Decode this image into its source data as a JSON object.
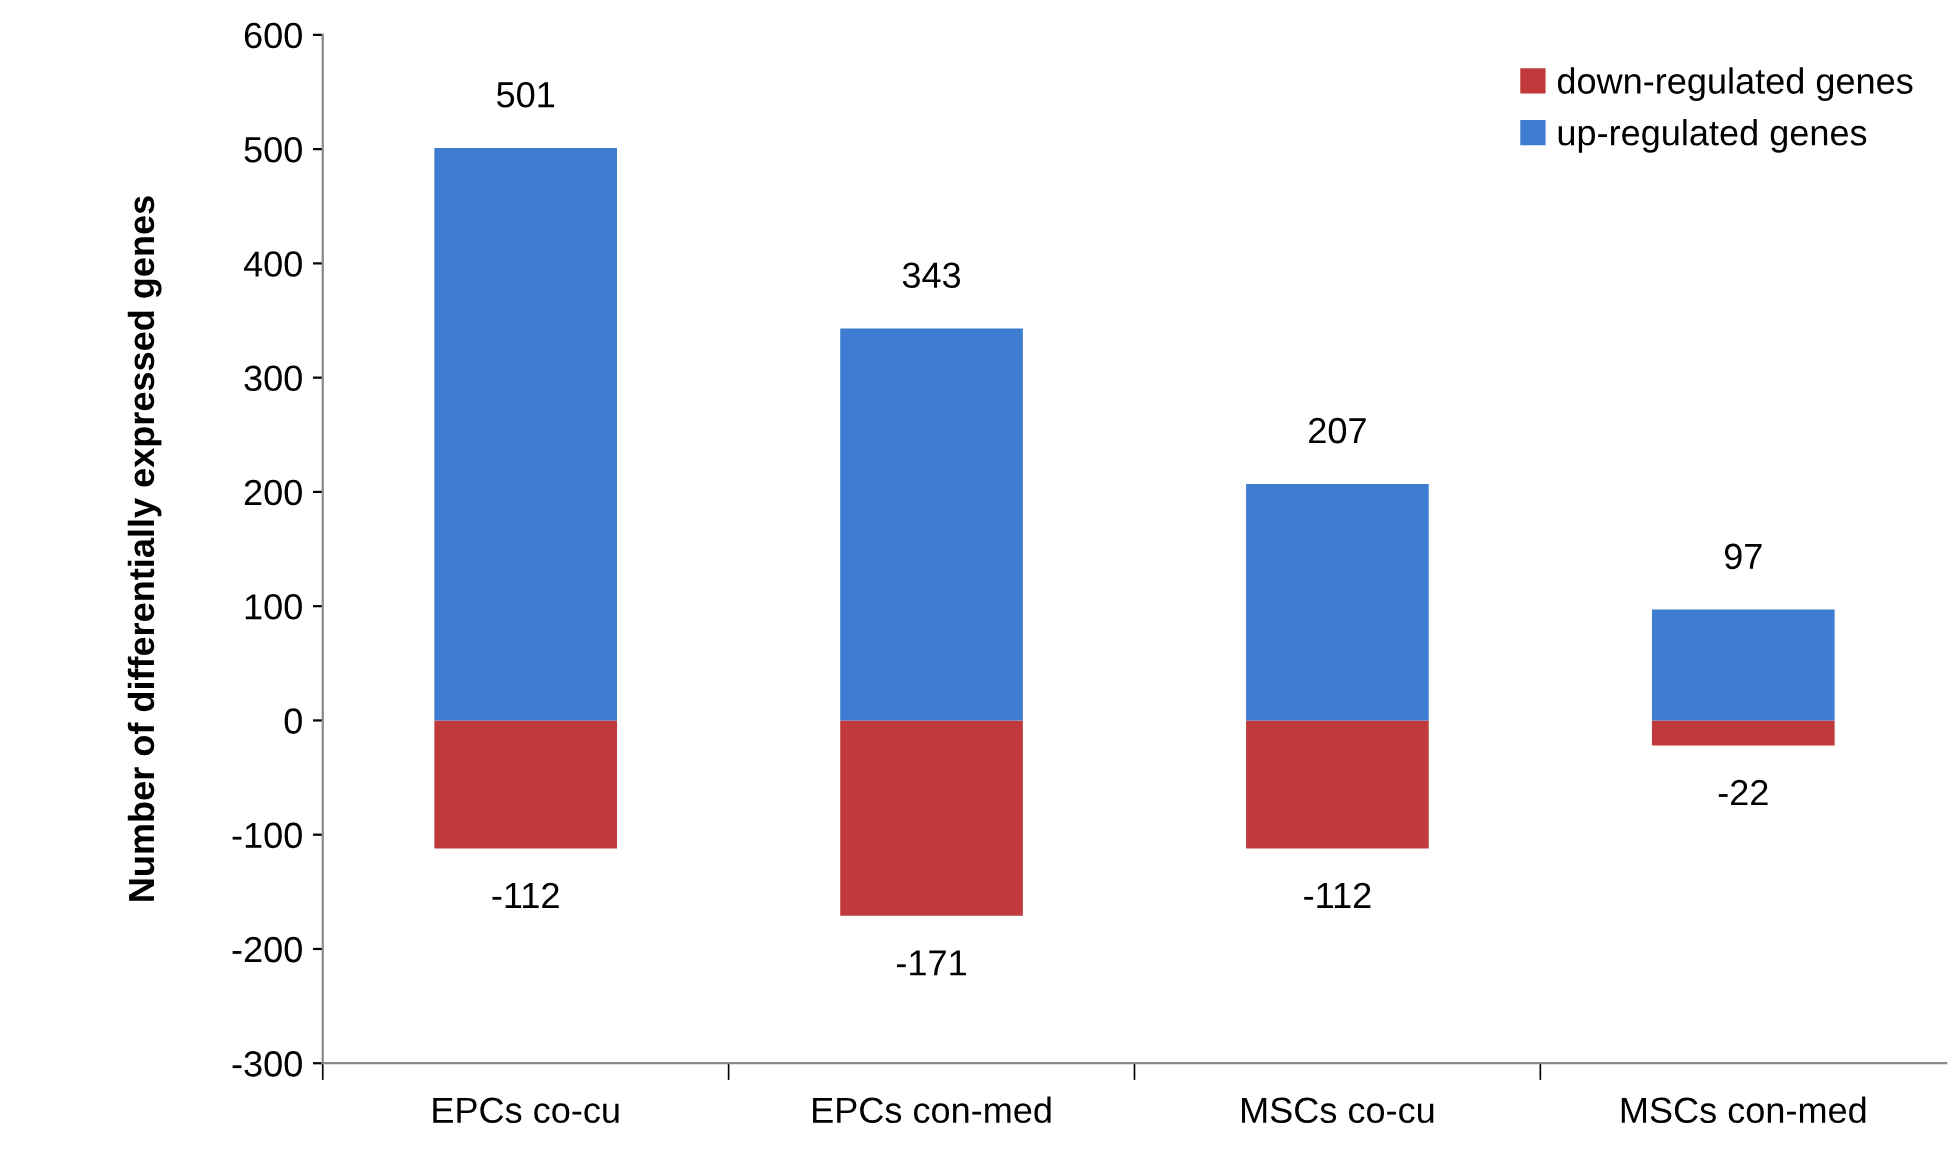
{
  "chart_data": {
    "type": "bar",
    "ylabel": "Number of differentially expressed genes",
    "categories": [
      "EPCs co-cu",
      "EPCs con-med",
      "MSCs co-cu",
      "MSCs con-med"
    ],
    "stacked": true,
    "series": [
      {
        "name": "down-regulated genes",
        "color": "#c0393b",
        "values": [
          -112,
          -171,
          -112,
          -22
        ]
      },
      {
        "name": "up-regulated genes",
        "color": "#3d7cd0",
        "values": [
          501,
          343,
          207,
          97
        ]
      }
    ],
    "ylim": [
      -300,
      600
    ],
    "yticks": [
      -300,
      -200,
      -100,
      0,
      100,
      200,
      300,
      400,
      500,
      600
    ],
    "data_labels": true,
    "legend": "top right",
    "grid": false
  }
}
